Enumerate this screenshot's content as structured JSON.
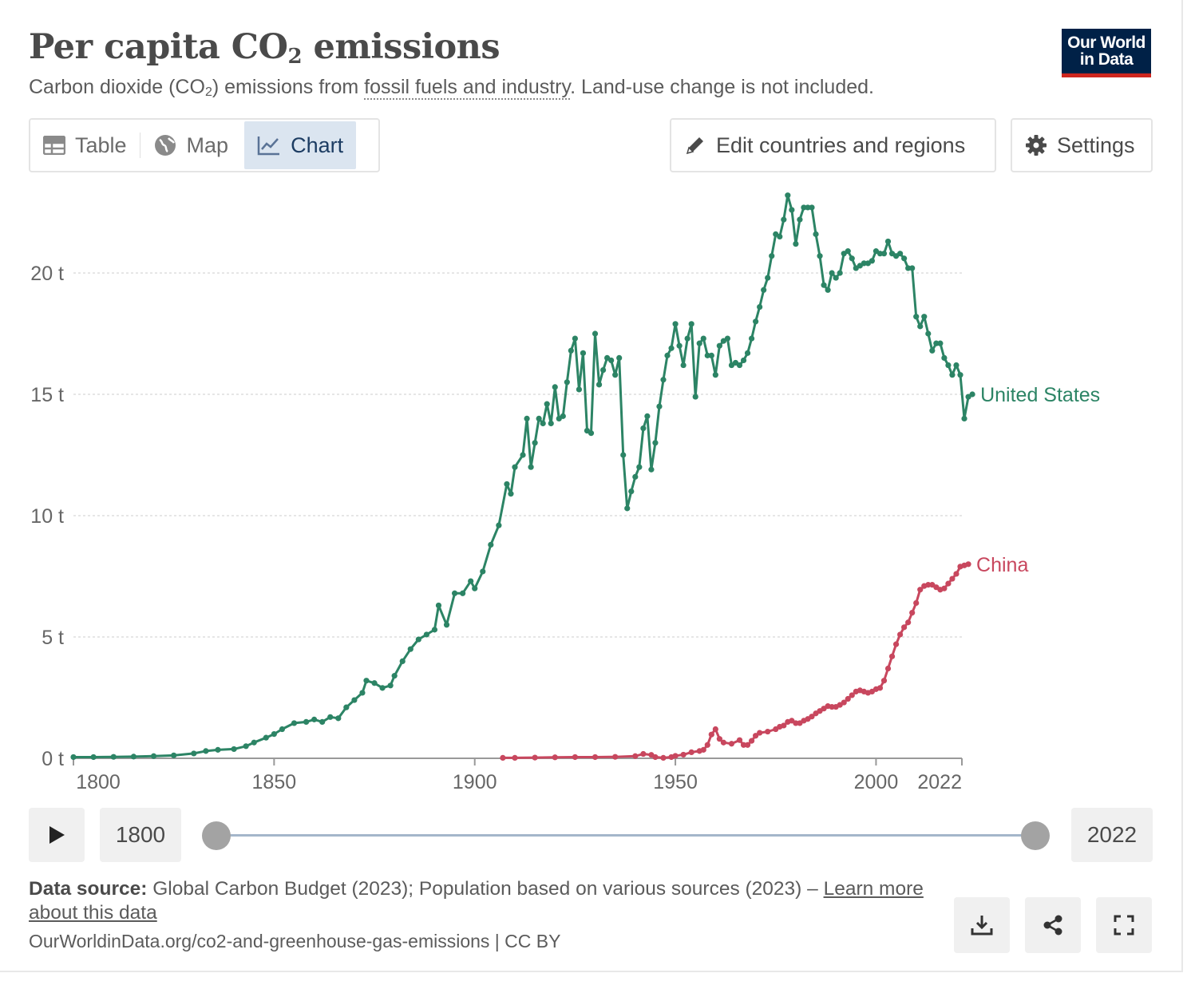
{
  "header": {
    "title_main": "Per capita CO",
    "title_sub": "2",
    "title_end": " emissions",
    "subtitle_a": "Carbon dioxide (CO",
    "subtitle_sub": "2",
    "subtitle_b": ") emissions from ",
    "subtitle_link": "fossil fuels and industry",
    "subtitle_c": ". Land-use change is not included.",
    "logo_line1": "Our World",
    "logo_line2": "in Data"
  },
  "tabs": [
    {
      "label": "Table",
      "icon": "table-icon"
    },
    {
      "label": "Map",
      "icon": "globe-icon"
    },
    {
      "label": "Chart",
      "icon": "line-chart-icon",
      "active": true
    }
  ],
  "toolbar": {
    "edit_label": "Edit countries and regions",
    "settings_label": "Settings"
  },
  "timeline": {
    "start_year": "1800",
    "end_year": "2022"
  },
  "footer": {
    "source_label": "Data source:",
    "source_text": " Global Carbon Budget (2023); Population based on various sources (2023) – ",
    "learn_more": "Learn more about this data",
    "url": "OurWorldinData.org/co2-and-greenhouse-gas-emissions | CC BY"
  },
  "colors": {
    "united_states": "#2c8465",
    "china": "#c8475e",
    "grid": "#dddddd",
    "axis_text": "#666666"
  },
  "chart_data": {
    "type": "line",
    "title": "",
    "xlabel": "",
    "ylabel": "",
    "xlim": [
      1800,
      2022
    ],
    "ylim": [
      0,
      22
    ],
    "x_ticks": [
      1800,
      1850,
      1900,
      1950,
      2000,
      2022
    ],
    "y_ticks": [
      0,
      5,
      10,
      15,
      20
    ],
    "y_tick_labels": [
      "0 t",
      "5 t",
      "10 t",
      "15 t",
      "20 t"
    ],
    "grid": "horizontal dashed",
    "legend": "inline labels at line ends",
    "series": [
      {
        "name": "United States",
        "color": "#2c8465",
        "points": [
          [
            1800,
            0.05
          ],
          [
            1805,
            0.05
          ],
          [
            1810,
            0.06
          ],
          [
            1815,
            0.07
          ],
          [
            1820,
            0.09
          ],
          [
            1825,
            0.12
          ],
          [
            1830,
            0.2
          ],
          [
            1833,
            0.3
          ],
          [
            1836,
            0.35
          ],
          [
            1840,
            0.38
          ],
          [
            1843,
            0.5
          ],
          [
            1845,
            0.65
          ],
          [
            1848,
            0.85
          ],
          [
            1850,
            1.0
          ],
          [
            1852,
            1.2
          ],
          [
            1855,
            1.45
          ],
          [
            1858,
            1.5
          ],
          [
            1860,
            1.6
          ],
          [
            1862,
            1.5
          ],
          [
            1864,
            1.7
          ],
          [
            1866,
            1.65
          ],
          [
            1868,
            2.1
          ],
          [
            1870,
            2.4
          ],
          [
            1872,
            2.7
          ],
          [
            1873,
            3.2
          ],
          [
            1875,
            3.1
          ],
          [
            1877,
            2.9
          ],
          [
            1879,
            3.0
          ],
          [
            1880,
            3.4
          ],
          [
            1882,
            4.0
          ],
          [
            1884,
            4.5
          ],
          [
            1886,
            4.9
          ],
          [
            1888,
            5.1
          ],
          [
            1890,
            5.3
          ],
          [
            1891,
            6.3
          ],
          [
            1893,
            5.5
          ],
          [
            1895,
            6.8
          ],
          [
            1897,
            6.8
          ],
          [
            1899,
            7.3
          ],
          [
            1900,
            7.0
          ],
          [
            1902,
            7.7
          ],
          [
            1904,
            8.8
          ],
          [
            1906,
            9.6
          ],
          [
            1908,
            11.3
          ],
          [
            1909,
            10.9
          ],
          [
            1910,
            12.0
          ],
          [
            1912,
            12.5
          ],
          [
            1913,
            14.0
          ],
          [
            1914,
            12.0
          ],
          [
            1915,
            13.0
          ],
          [
            1916,
            14.0
          ],
          [
            1917,
            13.8
          ],
          [
            1918,
            14.6
          ],
          [
            1919,
            13.8
          ],
          [
            1920,
            15.3
          ],
          [
            1921,
            14.0
          ],
          [
            1922,
            14.1
          ],
          [
            1923,
            15.5
          ],
          [
            1924,
            16.8
          ],
          [
            1925,
            17.3
          ],
          [
            1926,
            15.2
          ],
          [
            1927,
            16.7
          ],
          [
            1928,
            13.5
          ],
          [
            1929,
            13.4
          ],
          [
            1930,
            17.5
          ],
          [
            1931,
            15.4
          ],
          [
            1932,
            16.0
          ],
          [
            1933,
            16.5
          ],
          [
            1934,
            16.4
          ],
          [
            1935,
            15.8
          ],
          [
            1936,
            16.5
          ],
          [
            1937,
            12.5
          ],
          [
            1938,
            10.3
          ],
          [
            1939,
            11.0
          ],
          [
            1940,
            11.6
          ],
          [
            1941,
            12.0
          ],
          [
            1942,
            13.6
          ],
          [
            1943,
            14.1
          ],
          [
            1944,
            11.9
          ],
          [
            1945,
            13.0
          ],
          [
            1946,
            14.5
          ],
          [
            1947,
            15.6
          ],
          [
            1948,
            16.6
          ],
          [
            1949,
            16.9
          ],
          [
            1950,
            17.9
          ],
          [
            1951,
            17.0
          ],
          [
            1952,
            16.2
          ],
          [
            1953,
            17.3
          ],
          [
            1954,
            17.9
          ],
          [
            1955,
            14.9
          ],
          [
            1956,
            17.1
          ],
          [
            1957,
            17.3
          ],
          [
            1958,
            16.6
          ],
          [
            1959,
            16.6
          ],
          [
            1960,
            15.8
          ],
          [
            1961,
            17.0
          ],
          [
            1962,
            17.2
          ],
          [
            1963,
            17.3
          ],
          [
            1964,
            16.2
          ],
          [
            1965,
            16.3
          ],
          [
            1966,
            16.2
          ],
          [
            1967,
            16.4
          ],
          [
            1968,
            16.7
          ],
          [
            1969,
            17.3
          ],
          [
            1970,
            18.0
          ],
          [
            1971,
            18.6
          ],
          [
            1972,
            19.3
          ],
          [
            1973,
            19.8
          ],
          [
            1974,
            20.7
          ],
          [
            1975,
            21.6
          ],
          [
            1976,
            21.5
          ],
          [
            1977,
            22.2
          ],
          [
            1978,
            23.2
          ],
          [
            1979,
            22.6
          ],
          [
            1980,
            21.2
          ],
          [
            1981,
            22.2
          ],
          [
            1982,
            22.7
          ],
          [
            1983,
            22.7
          ],
          [
            1984,
            22.7
          ],
          [
            1985,
            21.6
          ],
          [
            1986,
            20.7
          ],
          [
            1987,
            19.5
          ],
          [
            1988,
            19.3
          ],
          [
            1989,
            20.0
          ],
          [
            1990,
            19.8
          ],
          [
            1991,
            20.0
          ],
          [
            1992,
            20.8
          ],
          [
            1993,
            20.9
          ],
          [
            1994,
            20.6
          ],
          [
            1995,
            20.2
          ],
          [
            1996,
            20.3
          ],
          [
            1997,
            20.4
          ],
          [
            1998,
            20.4
          ],
          [
            1999,
            20.5
          ],
          [
            2000,
            20.9
          ],
          [
            2001,
            20.8
          ],
          [
            2002,
            20.8
          ],
          [
            2003,
            21.3
          ],
          [
            2004,
            20.8
          ],
          [
            2005,
            20.7
          ],
          [
            2006,
            20.8
          ],
          [
            2007,
            20.6
          ],
          [
            2008,
            20.2
          ],
          [
            2009,
            20.2
          ],
          [
            2010,
            18.2
          ],
          [
            2011,
            17.8
          ],
          [
            2012,
            18.2
          ],
          [
            2013,
            17.5
          ],
          [
            2014,
            16.8
          ],
          [
            2015,
            17.1
          ],
          [
            2016,
            17.1
          ],
          [
            2017,
            16.5
          ],
          [
            2018,
            16.2
          ],
          [
            2019,
            15.8
          ],
          [
            2020,
            16.2
          ],
          [
            2021,
            15.8
          ],
          [
            2022,
            14.0
          ],
          [
            2023,
            14.9
          ],
          [
            2024,
            15.0
          ]
        ]
      },
      {
        "name": "China",
        "color": "#c8475e",
        "points": [
          [
            1907,
            0.02
          ],
          [
            1910,
            0.02
          ],
          [
            1915,
            0.03
          ],
          [
            1920,
            0.04
          ],
          [
            1925,
            0.05
          ],
          [
            1930,
            0.05
          ],
          [
            1935,
            0.06
          ],
          [
            1940,
            0.09
          ],
          [
            1942,
            0.18
          ],
          [
            1944,
            0.14
          ],
          [
            1945,
            0.05
          ],
          [
            1947,
            0.02
          ],
          [
            1949,
            0.05
          ],
          [
            1950,
            0.1
          ],
          [
            1952,
            0.15
          ],
          [
            1954,
            0.25
          ],
          [
            1956,
            0.3
          ],
          [
            1957,
            0.35
          ],
          [
            1958,
            0.55
          ],
          [
            1959,
            0.98
          ],
          [
            1960,
            1.2
          ],
          [
            1961,
            0.8
          ],
          [
            1962,
            0.65
          ],
          [
            1964,
            0.6
          ],
          [
            1966,
            0.75
          ],
          [
            1967,
            0.55
          ],
          [
            1968,
            0.55
          ],
          [
            1969,
            0.72
          ],
          [
            1970,
            0.93
          ],
          [
            1971,
            1.05
          ],
          [
            1973,
            1.1
          ],
          [
            1975,
            1.2
          ],
          [
            1976,
            1.3
          ],
          [
            1977,
            1.35
          ],
          [
            1978,
            1.5
          ],
          [
            1979,
            1.55
          ],
          [
            1980,
            1.45
          ],
          [
            1981,
            1.45
          ],
          [
            1982,
            1.55
          ],
          [
            1983,
            1.62
          ],
          [
            1984,
            1.72
          ],
          [
            1985,
            1.85
          ],
          [
            1986,
            1.95
          ],
          [
            1987,
            2.05
          ],
          [
            1988,
            2.15
          ],
          [
            1989,
            2.12
          ],
          [
            1990,
            2.12
          ],
          [
            1991,
            2.2
          ],
          [
            1992,
            2.3
          ],
          [
            1993,
            2.45
          ],
          [
            1994,
            2.6
          ],
          [
            1995,
            2.75
          ],
          [
            1996,
            2.8
          ],
          [
            1997,
            2.75
          ],
          [
            1998,
            2.7
          ],
          [
            1999,
            2.75
          ],
          [
            2000,
            2.85
          ],
          [
            2001,
            2.9
          ],
          [
            2002,
            3.2
          ],
          [
            2003,
            3.7
          ],
          [
            2004,
            4.2
          ],
          [
            2005,
            4.7
          ],
          [
            2006,
            5.1
          ],
          [
            2007,
            5.4
          ],
          [
            2008,
            5.6
          ],
          [
            2009,
            6.0
          ],
          [
            2010,
            6.4
          ],
          [
            2011,
            6.95
          ],
          [
            2012,
            7.1
          ],
          [
            2013,
            7.15
          ],
          [
            2014,
            7.15
          ],
          [
            2015,
            7.05
          ],
          [
            2016,
            6.95
          ],
          [
            2017,
            7.0
          ],
          [
            2018,
            7.2
          ],
          [
            2019,
            7.4
          ],
          [
            2020,
            7.6
          ],
          [
            2021,
            7.9
          ],
          [
            2022,
            7.95
          ],
          [
            2023,
            8.0
          ]
        ]
      }
    ]
  }
}
